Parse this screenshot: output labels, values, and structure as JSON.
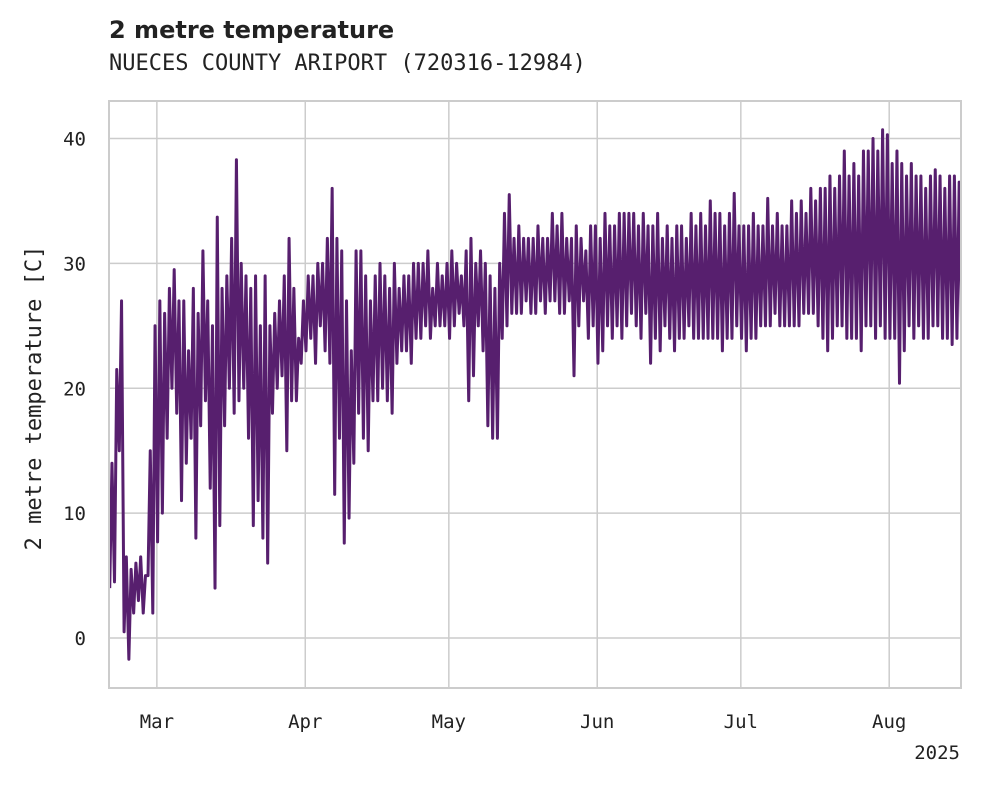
{
  "chart_data": {
    "type": "line",
    "title": "2 metre temperature",
    "subtitle": "NUECES COUNTY ARIPORT (720316-12984)",
    "xlabel": "",
    "ylabel": "2 metre temperature [C]",
    "year_label": "2025",
    "xlim": [
      "2025-02-19",
      "2025-08-16"
    ],
    "ylim": [
      -4,
      43
    ],
    "yticks": [
      0,
      10,
      20,
      30,
      40
    ],
    "xticks": [
      {
        "date": "2025-03-01",
        "label": "Mar"
      },
      {
        "date": "2025-04-01",
        "label": "Apr"
      },
      {
        "date": "2025-05-01",
        "label": "May"
      },
      {
        "date": "2025-06-01",
        "label": "Jun"
      },
      {
        "date": "2025-07-01",
        "label": "Jul"
      },
      {
        "date": "2025-08-01",
        "label": "Aug"
      }
    ],
    "grid": true,
    "legend": "none",
    "color": "#571f6e",
    "series": [
      {
        "x": [
          "2025-02-19",
          "2025-02-20",
          "2025-02-21",
          "2025-02-22",
          "2025-02-23",
          "2025-02-24",
          "2025-02-25",
          "2025-02-26",
          "2025-02-27",
          "2025-02-28",
          "2025-03-01",
          "2025-03-02",
          "2025-03-03",
          "2025-03-04",
          "2025-03-05",
          "2025-03-06",
          "2025-03-07",
          "2025-03-08",
          "2025-03-09",
          "2025-03-10",
          "2025-03-11",
          "2025-03-12",
          "2025-03-13",
          "2025-03-14",
          "2025-03-15",
          "2025-03-16",
          "2025-03-17",
          "2025-03-18",
          "2025-03-19",
          "2025-03-20",
          "2025-03-21",
          "2025-03-22",
          "2025-03-23",
          "2025-03-24",
          "2025-03-25",
          "2025-03-26",
          "2025-03-27",
          "2025-03-28",
          "2025-03-29",
          "2025-03-30",
          "2025-03-31",
          "2025-04-01",
          "2025-04-02",
          "2025-04-03",
          "2025-04-04",
          "2025-04-05",
          "2025-04-06",
          "2025-04-07",
          "2025-04-08",
          "2025-04-09",
          "2025-04-10",
          "2025-04-11",
          "2025-04-12",
          "2025-04-13",
          "2025-04-14",
          "2025-04-15",
          "2025-04-16",
          "2025-04-17",
          "2025-04-18",
          "2025-04-19",
          "2025-04-20",
          "2025-04-21",
          "2025-04-22",
          "2025-04-23",
          "2025-04-24",
          "2025-04-25",
          "2025-04-26",
          "2025-04-27",
          "2025-04-28",
          "2025-04-29",
          "2025-04-30",
          "2025-05-01",
          "2025-05-02",
          "2025-05-03",
          "2025-05-04",
          "2025-05-05",
          "2025-05-06",
          "2025-05-07",
          "2025-05-08",
          "2025-05-09",
          "2025-05-10",
          "2025-05-11",
          "2025-05-12",
          "2025-05-13",
          "2025-05-14",
          "2025-05-15",
          "2025-05-16",
          "2025-05-17",
          "2025-05-18",
          "2025-05-19",
          "2025-05-20",
          "2025-05-21",
          "2025-05-22",
          "2025-05-23",
          "2025-05-24",
          "2025-05-25",
          "2025-05-26",
          "2025-05-27",
          "2025-05-28",
          "2025-05-29",
          "2025-05-30",
          "2025-05-31",
          "2025-06-01",
          "2025-06-02",
          "2025-06-03",
          "2025-06-04",
          "2025-06-05",
          "2025-06-06",
          "2025-06-07",
          "2025-06-08",
          "2025-06-09",
          "2025-06-10",
          "2025-06-11",
          "2025-06-12",
          "2025-06-13",
          "2025-06-14",
          "2025-06-15",
          "2025-06-16",
          "2025-06-17",
          "2025-06-18",
          "2025-06-19",
          "2025-06-20",
          "2025-06-21",
          "2025-06-22",
          "2025-06-23",
          "2025-06-24",
          "2025-06-25",
          "2025-06-26",
          "2025-06-27",
          "2025-06-28",
          "2025-06-29",
          "2025-06-30",
          "2025-07-01",
          "2025-07-02",
          "2025-07-03",
          "2025-07-04",
          "2025-07-05",
          "2025-07-06",
          "2025-07-07",
          "2025-07-08",
          "2025-07-09",
          "2025-07-10",
          "2025-07-11",
          "2025-07-12",
          "2025-07-13",
          "2025-07-14",
          "2025-07-15",
          "2025-07-16",
          "2025-07-17",
          "2025-07-18",
          "2025-07-19",
          "2025-07-20",
          "2025-07-21",
          "2025-07-22",
          "2025-07-23",
          "2025-07-24",
          "2025-07-25",
          "2025-07-26",
          "2025-07-27",
          "2025-07-28",
          "2025-07-29",
          "2025-07-30",
          "2025-07-31",
          "2025-08-01",
          "2025-08-02",
          "2025-08-03",
          "2025-08-04",
          "2025-08-05",
          "2025-08-06",
          "2025-08-07",
          "2025-08-08",
          "2025-08-09",
          "2025-08-10",
          "2025-08-11",
          "2025-08-12",
          "2025-08-13",
          "2025-08-14",
          "2025-08-15",
          "2025-08-16"
        ],
        "min": [
          4,
          4.5,
          15,
          0.5,
          -1.7,
          2,
          3,
          2,
          5,
          2,
          7.7,
          10,
          16,
          20,
          18,
          11,
          14,
          16,
          8,
          17,
          19,
          12,
          4,
          9,
          17,
          20,
          18,
          19,
          20,
          16,
          9,
          11,
          8,
          6,
          18,
          20,
          21,
          15,
          19,
          19,
          22,
          23,
          24,
          22,
          25,
          23,
          22,
          11.5,
          16,
          7.6,
          9.6,
          14,
          18,
          16,
          15,
          19,
          19,
          20,
          19,
          18,
          22,
          23,
          23,
          22,
          24,
          24,
          25,
          24,
          25,
          25,
          25,
          24,
          25,
          26,
          25,
          19,
          21,
          25,
          23,
          17,
          16,
          16,
          24,
          25,
          26,
          26,
          26,
          27,
          26,
          26,
          27,
          26,
          27,
          27,
          26,
          26,
          27,
          21,
          25,
          27,
          24,
          25,
          22,
          23,
          25,
          24,
          25,
          24,
          25,
          26,
          25,
          24,
          26,
          22,
          24,
          23,
          25,
          24,
          23,
          24,
          24,
          25,
          24,
          24,
          24,
          24,
          24,
          24,
          23,
          24,
          24,
          25,
          24,
          23,
          24,
          24,
          25,
          25,
          25,
          26,
          25,
          25,
          25,
          25,
          25,
          26,
          26,
          26,
          25,
          24,
          23,
          24,
          25,
          25,
          24,
          24,
          24,
          23,
          25,
          25,
          24,
          25,
          24,
          24,
          24,
          20.4,
          23,
          25,
          24,
          25,
          24,
          24,
          25,
          25,
          24,
          24,
          23.5,
          24,
          24,
          24,
          26,
          28
        ],
        "max": [
          14,
          21.5,
          27,
          6.5,
          5.5,
          6,
          6.5,
          5,
          15,
          25,
          27,
          26,
          28,
          29.5,
          27,
          27,
          23,
          28,
          26,
          31,
          27,
          25,
          33.7,
          28,
          29,
          32,
          38.3,
          30,
          29,
          28,
          29,
          25,
          29,
          25,
          26,
          27,
          29,
          32,
          28,
          24,
          27,
          29,
          29,
          30,
          30,
          32,
          36,
          32,
          31,
          27,
          23,
          31,
          31,
          29,
          27,
          29,
          30,
          29,
          28,
          30,
          28,
          29,
          29,
          30,
          30,
          30,
          31,
          28,
          30,
          29,
          30,
          31,
          30,
          29,
          31,
          32,
          30,
          31,
          30,
          29,
          28,
          30,
          34,
          35.5,
          32,
          33,
          32,
          32,
          32,
          33,
          32,
          32,
          34,
          33,
          34,
          32,
          32,
          33,
          32,
          31,
          33,
          33,
          32,
          34,
          33,
          33,
          34,
          34,
          34,
          34,
          33,
          34,
          33,
          33,
          34,
          32,
          33,
          32,
          33,
          33,
          32,
          34,
          33,
          34,
          33,
          35,
          34,
          34,
          33,
          34,
          35.6,
          33,
          33,
          33,
          34,
          33,
          33,
          35.2,
          33,
          34,
          33,
          33,
          35,
          34,
          35,
          34,
          36,
          35,
          36,
          36,
          37,
          36,
          37,
          39,
          37,
          38,
          37,
          39,
          39,
          40,
          39,
          40.7,
          40.3,
          38,
          39,
          38,
          37,
          38,
          37,
          37,
          36,
          37,
          37.5,
          37,
          36,
          37,
          37,
          36.5,
          37.5,
          33
        ]
      }
    ]
  }
}
